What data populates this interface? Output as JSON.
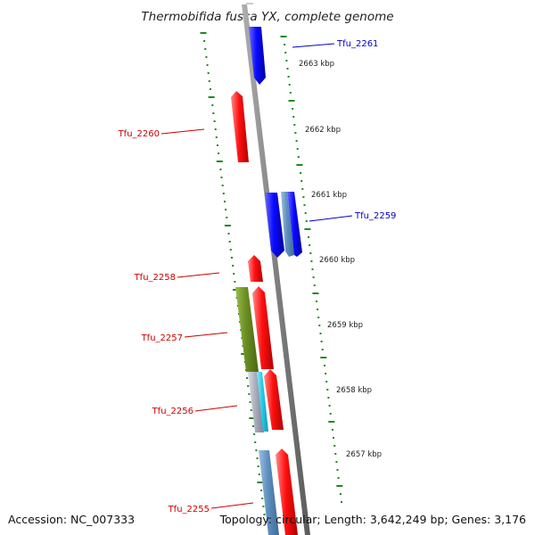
{
  "title": "Thermobifida fusca YX, complete genome",
  "kbp_labels": [
    {
      "text": "2663 kbp"
    },
    {
      "text": "2662 kbp"
    },
    {
      "text": "2661 kbp"
    },
    {
      "text": "2660 kbp"
    },
    {
      "text": "2659 kbp"
    },
    {
      "text": "2658 kbp"
    },
    {
      "text": "2657 kbp"
    }
  ],
  "genes": [
    {
      "name": "Tfu_2261",
      "color": "#0000cc",
      "strand": "reverse"
    },
    {
      "name": "Tfu_2260",
      "color": "#cc0000",
      "strand": "forward"
    },
    {
      "name": "Tfu_2259",
      "color": "#0000cc",
      "strand": "reverse"
    },
    {
      "name": "Tfu_2258",
      "color": "#cc0000",
      "strand": "forward"
    },
    {
      "name": "Tfu_2257",
      "color": "#cc0000",
      "strand": "forward"
    },
    {
      "name": "Tfu_2256",
      "color": "#cc0000",
      "strand": "forward"
    },
    {
      "name": "Tfu_2255",
      "color": "#cc0000",
      "strand": "forward"
    }
  ],
  "colors": {
    "forward": "#ff0000",
    "reverse": "#0000ee",
    "backbone": "#888888",
    "ticks": "#228822",
    "olive": "#6b8e23",
    "steel": "#5f8fbf",
    "cyan": "#22c8e6",
    "gray": "#a8aab8"
  },
  "footer": {
    "accession": "Accession: NC_007333",
    "stats": "Topology: circular; Length: 3,642,249 bp; Genes: 3,176"
  }
}
